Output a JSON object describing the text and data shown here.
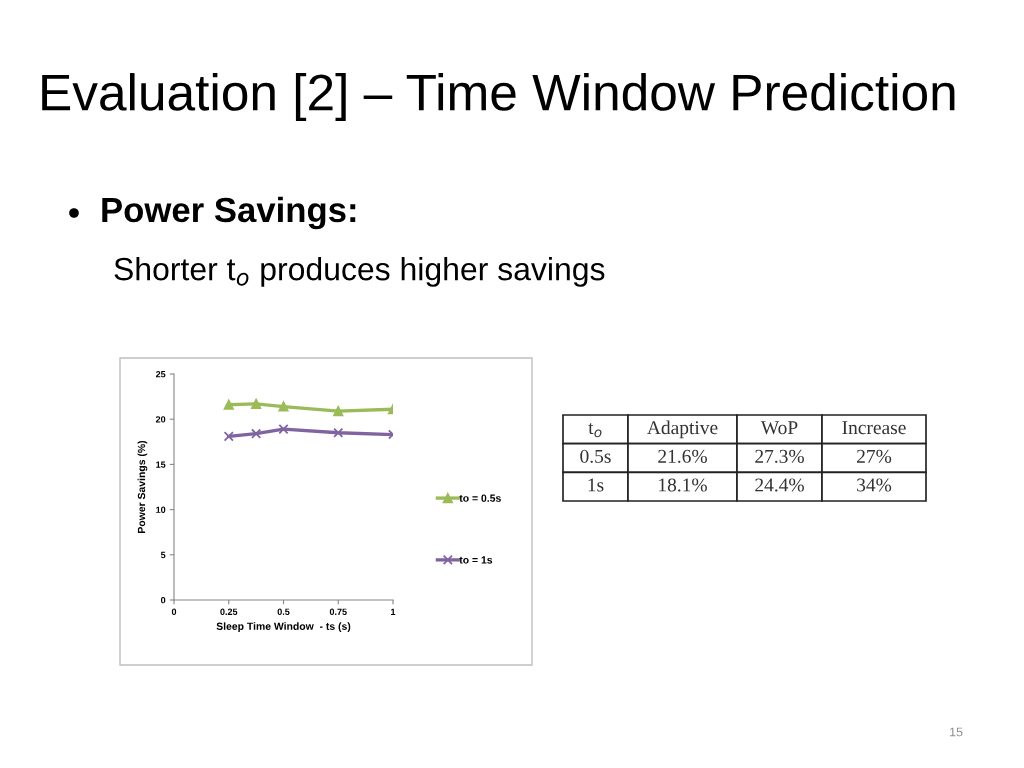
{
  "chart_data": [
    {
      "type": "line",
      "title": "Evaluation [2] – Time Window Prediction",
      "subtitle": "Power Savings:",
      "annotations": [
        "Shorter t$_{o}$ produces higher savings",
        "15"
      ],
      "xlabel": "Sleep Time Window  - ts (s)",
      "ylabel": "Power Savings (%)",
      "x": [
        0.25,
        0.375,
        0.5,
        0.75,
        1
      ],
      "series": [
        {
          "name": "to = 0.5s",
          "color": "#9bbb59",
          "marker": "triangle",
          "values": [
            21.6,
            21.7,
            21.4,
            20.9,
            21.1
          ]
        },
        {
          "name": "to = 1s",
          "color": "#8064a2",
          "marker": "cross",
          "values": [
            18.1,
            18.4,
            18.9,
            18.5,
            18.3
          ]
        }
      ],
      "xlim": [
        0,
        1
      ],
      "xticks": [
        0,
        0.25,
        0.5,
        0.75,
        1
      ],
      "ylim": [
        0,
        25
      ],
      "yticks": [
        0,
        5,
        10,
        15,
        20,
        25
      ],
      "grid": false,
      "legend": "right",
      "line_style": "solid"
    },
    {
      "type": "other",
      "annotations": [
        "t$_{o}$",
        "Adaptive",
        "WoP",
        "Increase",
        "0.5s",
        "21.6%",
        "27.3%",
        "27%",
        "1s",
        "18.1%",
        "24.4%",
        "34%"
      ]
    }
  ]
}
